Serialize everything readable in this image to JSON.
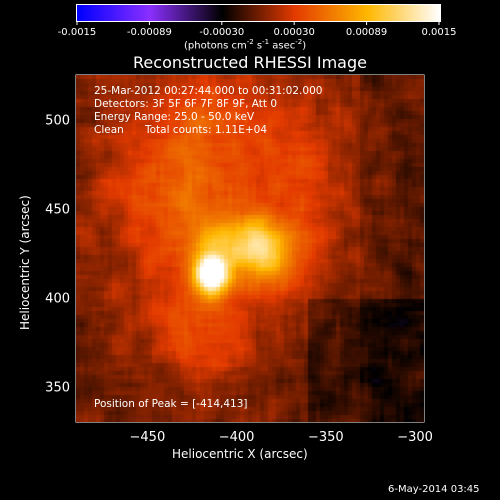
{
  "colorbar": {
    "tick_labels": [
      "-0.0015",
      "-0.00089",
      "-0.00030",
      "0.00030",
      "0.00089",
      "0.0015"
    ],
    "unit_label_prefix": "(photons cm",
    "unit_exp1": "-2",
    "unit_mid": " s",
    "unit_exp2": "-1",
    "unit_mid2": " asec",
    "unit_exp3": "-2",
    "unit_suffix": ")",
    "min": -0.0015,
    "max": 0.0015
  },
  "chart_data": {
    "type": "heatmap",
    "title": "Reconstructed RHESSI Image",
    "xlabel": "Heliocentric X (arcsec)",
    "ylabel": "Heliocentric Y (arcsec)",
    "xlim": [
      -490,
      -295
    ],
    "ylim": [
      330,
      525
    ],
    "x_ticks": [
      -450,
      -400,
      -350,
      -300
    ],
    "x_tick_labels": [
      "−450",
      "−400",
      "−350",
      "−300"
    ],
    "y_ticks": [
      350,
      400,
      450,
      500
    ],
    "y_tick_labels": [
      "350",
      "400",
      "450",
      "500"
    ],
    "peak": [
      -414,
      413
    ],
    "annotations": {
      "time": "25-Mar-2012 00:27:44.000 to 00:31:02.000",
      "detectors": "Detectors: 3F 5F 6F 7F 8F 9F, Att 0",
      "energy": "Energy Range: 25.0 - 50.0 keV",
      "method": "Clean",
      "counts": "Total counts: 1.11E+04",
      "peak_text": "Position of Peak = [-414,413]"
    },
    "colorscale": [
      "#0000ff",
      "#8c30ff",
      "#000000",
      "#e43b00",
      "#ffb800",
      "#ffffff"
    ]
  },
  "footer": {
    "date": "6-May-2014 03:45"
  }
}
